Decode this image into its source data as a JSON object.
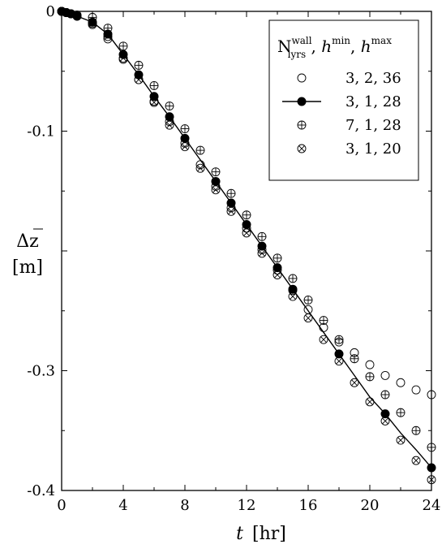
{
  "chart_data": {
    "type": "scatter",
    "xlabel_symbol": "t",
    "xlabel_unit": "[hr]",
    "ylabel_symbol": "Δz",
    "ylabel_unit": "[m]",
    "xlim": [
      0,
      24
    ],
    "ylim": [
      -0.4,
      0
    ],
    "xticks": [
      0,
      4,
      8,
      12,
      16,
      20,
      24
    ],
    "xtick_labels": [
      "0",
      "4",
      "8",
      "12",
      "16",
      "20",
      "24"
    ],
    "yticks": [
      0,
      -0.1,
      -0.2,
      -0.3,
      -0.4
    ],
    "ytick_labels": [
      "0",
      "-0.1",
      "",
      "-0.3",
      "-0.4"
    ],
    "grid": false,
    "legend_position": "top-right",
    "legend_title": {
      "n_base": "N",
      "n_sup": "wall",
      "n_sub": "lyrs",
      "sep1": " , ",
      "h1_base": "h",
      "h1_sup": "min",
      "sep2": ", ",
      "h2_base": "h",
      "h2_sup": "max"
    },
    "series": [
      {
        "name": "3, 2, 36",
        "marker": "open-circle",
        "line": false,
        "points": [
          [
            0,
            0
          ],
          [
            0.3,
            -0.001
          ],
          [
            0.6,
            -0.002
          ],
          [
            1,
            -0.004
          ],
          [
            2,
            -0.011
          ],
          [
            3,
            -0.023
          ],
          [
            4,
            -0.04
          ],
          [
            5,
            -0.057
          ],
          [
            6,
            -0.075
          ],
          [
            7,
            -0.092
          ],
          [
            8,
            -0.11
          ],
          [
            9,
            -0.128
          ],
          [
            10,
            -0.146
          ],
          [
            11,
            -0.164
          ],
          [
            12,
            -0.181
          ],
          [
            13,
            -0.199
          ],
          [
            14,
            -0.216
          ],
          [
            15,
            -0.233
          ],
          [
            16,
            -0.249
          ],
          [
            17,
            -0.264
          ],
          [
            18,
            -0.276
          ],
          [
            19,
            -0.285
          ],
          [
            20,
            -0.295
          ],
          [
            21,
            -0.304
          ],
          [
            22,
            -0.31
          ],
          [
            23,
            -0.316
          ],
          [
            24,
            -0.32
          ]
        ]
      },
      {
        "name": "3, 1, 28",
        "marker": "filled-circle",
        "line": true,
        "points": [
          [
            0,
            0
          ],
          [
            0.3,
            -0.001
          ],
          [
            0.6,
            -0.002
          ],
          [
            1,
            -0.004
          ],
          [
            2,
            -0.009
          ],
          [
            3,
            -0.019
          ],
          [
            4,
            -0.036
          ],
          [
            5,
            -0.053
          ],
          [
            6,
            -0.071
          ],
          [
            7,
            -0.088
          ],
          [
            8,
            -0.106
          ],
          [
            9,
            -0.124
          ],
          [
            10,
            -0.142
          ],
          [
            11,
            -0.16
          ],
          [
            12,
            -0.178
          ],
          [
            13,
            -0.196
          ],
          [
            14,
            -0.214
          ],
          [
            15,
            -0.232
          ],
          [
            16,
            -0.25
          ],
          [
            17,
            -0.268
          ],
          [
            18,
            -0.286
          ],
          [
            19,
            -0.304
          ],
          [
            20,
            -0.322
          ],
          [
            21,
            -0.336
          ],
          [
            22,
            -0.352
          ],
          [
            23,
            -0.366
          ],
          [
            24,
            -0.381
          ]
        ],
        "markers_at": [
          0,
          0.3,
          0.6,
          1,
          2,
          3,
          4,
          5,
          6,
          7,
          8,
          10,
          11,
          12,
          13,
          14,
          15,
          18,
          21,
          24
        ]
      },
      {
        "name": "7, 1, 28",
        "marker": "circle-plus",
        "line": false,
        "points": [
          [
            0,
            0
          ],
          [
            0.3,
            -0.001
          ],
          [
            0.6,
            -0.002
          ],
          [
            1,
            -0.003
          ],
          [
            2,
            -0.005
          ],
          [
            3,
            -0.014
          ],
          [
            4,
            -0.029
          ],
          [
            5,
            -0.045
          ],
          [
            6,
            -0.062
          ],
          [
            7,
            -0.079
          ],
          [
            8,
            -0.098
          ],
          [
            9,
            -0.116
          ],
          [
            10,
            -0.134
          ],
          [
            11,
            -0.152
          ],
          [
            12,
            -0.17
          ],
          [
            13,
            -0.188
          ],
          [
            14,
            -0.206
          ],
          [
            15,
            -0.223
          ],
          [
            16,
            -0.241
          ],
          [
            17,
            -0.258
          ],
          [
            18,
            -0.274
          ],
          [
            19,
            -0.29
          ],
          [
            20,
            -0.305
          ],
          [
            21,
            -0.32
          ],
          [
            22,
            -0.335
          ],
          [
            23,
            -0.35
          ],
          [
            24,
            -0.364
          ]
        ]
      },
      {
        "name": "3, 1, 20",
        "marker": "circle-cross",
        "line": false,
        "points": [
          [
            0,
            0
          ],
          [
            0.3,
            -0.001
          ],
          [
            0.6,
            -0.002
          ],
          [
            1,
            -0.004
          ],
          [
            2,
            -0.01
          ],
          [
            3,
            -0.021
          ],
          [
            4,
            -0.039
          ],
          [
            5,
            -0.057
          ],
          [
            6,
            -0.076
          ],
          [
            7,
            -0.095
          ],
          [
            8,
            -0.113
          ],
          [
            9,
            -0.131
          ],
          [
            10,
            -0.149
          ],
          [
            11,
            -0.167
          ],
          [
            12,
            -0.185
          ],
          [
            13,
            -0.202
          ],
          [
            14,
            -0.22
          ],
          [
            15,
            -0.238
          ],
          [
            16,
            -0.256
          ],
          [
            17,
            -0.274
          ],
          [
            18,
            -0.292
          ],
          [
            19,
            -0.31
          ],
          [
            20,
            -0.326
          ],
          [
            21,
            -0.342
          ],
          [
            22,
            -0.358
          ],
          [
            23,
            -0.375
          ],
          [
            24,
            -0.391
          ]
        ]
      }
    ]
  }
}
